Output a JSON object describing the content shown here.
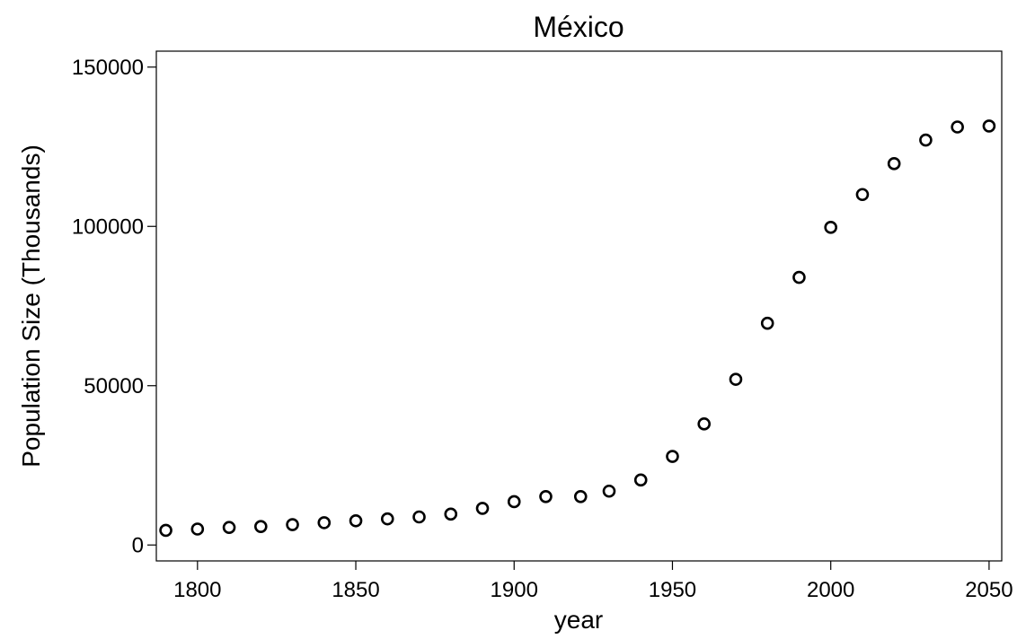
{
  "chart_data": {
    "type": "scatter",
    "title": "México",
    "xlabel": "year",
    "ylabel": "Population Size (Thousands)",
    "xlim": [
      1787,
      2054
    ],
    "ylim": [
      -5000,
      155000
    ],
    "xticks": [
      1800,
      1850,
      1900,
      1950,
      2000,
      2050
    ],
    "yticks": [
      0,
      50000,
      100000,
      150000
    ],
    "xtick_labels": [
      "1800",
      "1850",
      "1900",
      "1950",
      "2000",
      "2050"
    ],
    "ytick_labels": [
      "0",
      "50000",
      "100000",
      "150000"
    ],
    "grid": false,
    "marker": "open-circle",
    "x": [
      1790,
      1800,
      1810,
      1820,
      1830,
      1840,
      1850,
      1860,
      1870,
      1880,
      1890,
      1900,
      1910,
      1921,
      1930,
      1940,
      1950,
      1960,
      1970,
      1980,
      1990,
      2000,
      2010,
      2020,
      2030,
      2040,
      2050
    ],
    "y": [
      4600,
      5000,
      5500,
      5800,
      6400,
      7000,
      7600,
      8200,
      8800,
      9700,
      11500,
      13600,
      15200,
      15200,
      16900,
      20400,
      27800,
      38000,
      52000,
      69600,
      84000,
      99700,
      110000,
      119700,
      127100,
      131200,
      131500
    ]
  }
}
